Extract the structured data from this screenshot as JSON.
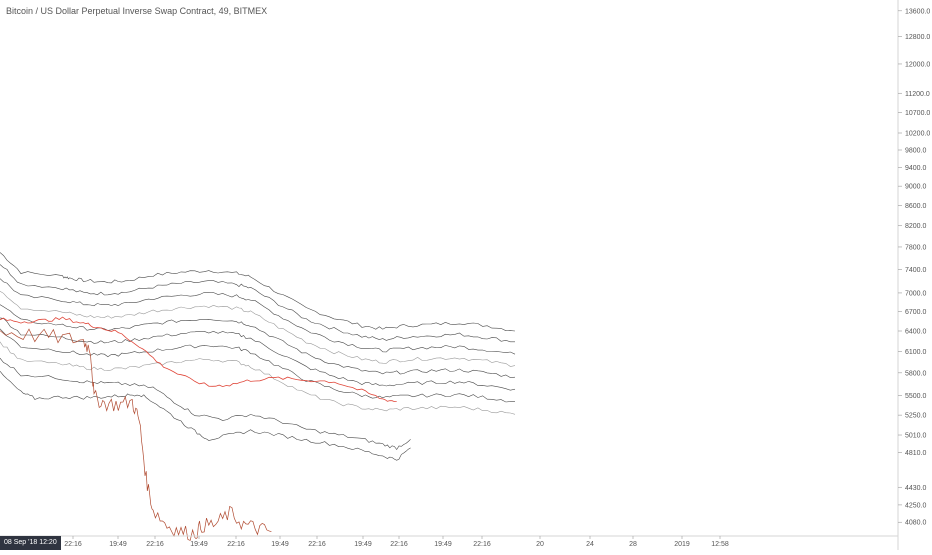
{
  "chart_title": "Bitcoin / US Dollar Perpetual Inverse Swap Contract, 49, BITMEX",
  "time_badge": "08 Sep '18   12:20",
  "colors": {
    "background": "#ffffff",
    "band_lines": "#4a4a4a",
    "band_light": "#9a9a9a",
    "moving_average": "#e0473a",
    "price_main": "#b04a30",
    "axis_text": "#555555"
  },
  "chart_data": {
    "type": "line",
    "title": "Bitcoin / US Dollar Perpetual Inverse Swap Contract, 49, BITMEX",
    "yscale": "log",
    "ylim": [
      3950,
      13950
    ],
    "y_ticks": [
      "13600.0",
      "12800.0",
      "12000.0",
      "11200.0",
      "10700.0",
      "10200.0",
      "9800.0",
      "9400.0",
      "9000.0",
      "8600.0",
      "8200.0",
      "7800.0",
      "7400.0",
      "7000.0",
      "6700.0",
      "6400.0",
      "6100.0",
      "5800.0",
      "5500.0",
      "5250.0",
      "5010.0",
      "4810.0",
      "4430.0",
      "4250.0",
      "4080.0"
    ],
    "x_ticks": [
      "22:16",
      "19:49",
      "22:16",
      "19:49",
      "22:16",
      "19:49",
      "22:16",
      "19:49",
      "22:16",
      "19:49",
      "22:16",
      "20",
      "24",
      "28",
      "2019",
      "12:58"
    ],
    "xlim": [
      0,
      100
    ],
    "series": [
      {
        "values": [
          [
            0,
            7700
          ],
          [
            3,
            7350
          ],
          [
            9,
            7280
          ],
          [
            10,
            7250
          ],
          [
            12,
            7210
          ],
          [
            15,
            7180
          ],
          [
            18,
            7200
          ],
          [
            22,
            7300
          ],
          [
            26,
            7350
          ],
          [
            30,
            7380
          ],
          [
            34,
            7330
          ],
          [
            36,
            7270
          ],
          [
            40,
            7000
          ],
          [
            44,
            6750
          ],
          [
            48,
            6600
          ],
          [
            52,
            6480
          ],
          [
            55,
            6430
          ],
          [
            58,
            6480
          ],
          [
            62,
            6500
          ],
          [
            66,
            6530
          ],
          [
            70,
            6480
          ],
          [
            74,
            6400
          ]
        ]
      },
      {
        "values": [
          [
            0,
            7500
          ],
          [
            3,
            7150
          ],
          [
            9,
            7080
          ],
          [
            12,
            7000
          ],
          [
            15,
            6990
          ],
          [
            18,
            7010
          ],
          [
            22,
            7100
          ],
          [
            26,
            7160
          ],
          [
            30,
            7190
          ],
          [
            34,
            7140
          ],
          [
            36,
            7080
          ],
          [
            40,
            6820
          ],
          [
            44,
            6580
          ],
          [
            48,
            6430
          ],
          [
            52,
            6320
          ],
          [
            55,
            6270
          ],
          [
            58,
            6310
          ],
          [
            62,
            6330
          ],
          [
            66,
            6350
          ],
          [
            70,
            6300
          ],
          [
            74,
            6240
          ]
        ]
      },
      {
        "values": [
          [
            0,
            7250
          ],
          [
            3,
            6950
          ],
          [
            9,
            6880
          ],
          [
            12,
            6820
          ],
          [
            15,
            6800
          ],
          [
            18,
            6820
          ],
          [
            22,
            6910
          ],
          [
            26,
            6960
          ],
          [
            30,
            6990
          ],
          [
            34,
            6950
          ],
          [
            36,
            6890
          ],
          [
            40,
            6640
          ],
          [
            44,
            6410
          ],
          [
            48,
            6260
          ],
          [
            52,
            6160
          ],
          [
            55,
            6110
          ],
          [
            58,
            6140
          ],
          [
            62,
            6160
          ],
          [
            66,
            6170
          ],
          [
            70,
            6120
          ],
          [
            74,
            6060
          ]
        ]
      },
      {
        "values": [
          [
            0,
            7050
          ],
          [
            3,
            6760
          ],
          [
            9,
            6690
          ],
          [
            12,
            6630
          ],
          [
            15,
            6610
          ],
          [
            18,
            6630
          ],
          [
            22,
            6710
          ],
          [
            26,
            6760
          ],
          [
            30,
            6790
          ],
          [
            34,
            6750
          ],
          [
            36,
            6690
          ],
          [
            40,
            6460
          ],
          [
            44,
            6240
          ],
          [
            48,
            6090
          ],
          [
            52,
            5990
          ],
          [
            55,
            5950
          ],
          [
            58,
            5980
          ],
          [
            62,
            6000
          ],
          [
            66,
            6010
          ],
          [
            70,
            5960
          ],
          [
            74,
            5900
          ]
        ]
      },
      {
        "values": [
          [
            0,
            6830
          ],
          [
            3,
            6560
          ],
          [
            9,
            6490
          ],
          [
            12,
            6440
          ],
          [
            15,
            6420
          ],
          [
            18,
            6440
          ],
          [
            22,
            6510
          ],
          [
            26,
            6560
          ],
          [
            30,
            6590
          ],
          [
            34,
            6550
          ],
          [
            36,
            6490
          ],
          [
            40,
            6270
          ],
          [
            44,
            6060
          ],
          [
            48,
            5920
          ],
          [
            52,
            5830
          ],
          [
            55,
            5790
          ],
          [
            58,
            5810
          ],
          [
            62,
            5830
          ],
          [
            66,
            5840
          ],
          [
            70,
            5800
          ],
          [
            74,
            5740
          ]
        ]
      },
      {
        "values": [
          [
            0,
            6620
          ],
          [
            3,
            6360
          ],
          [
            9,
            6300
          ],
          [
            12,
            6250
          ],
          [
            15,
            6230
          ],
          [
            18,
            6250
          ],
          [
            22,
            6310
          ],
          [
            26,
            6360
          ],
          [
            30,
            6390
          ],
          [
            34,
            6350
          ],
          [
            36,
            6290
          ],
          [
            40,
            6080
          ],
          [
            44,
            5880
          ],
          [
            48,
            5750
          ],
          [
            52,
            5660
          ],
          [
            55,
            5630
          ],
          [
            58,
            5650
          ],
          [
            62,
            5670
          ],
          [
            66,
            5680
          ],
          [
            70,
            5630
          ],
          [
            74,
            5580
          ]
        ]
      },
      {
        "values": [
          [
            0,
            6420
          ],
          [
            3,
            6170
          ],
          [
            9,
            6110
          ],
          [
            12,
            6060
          ],
          [
            15,
            6040
          ],
          [
            18,
            6060
          ],
          [
            22,
            6110
          ],
          [
            26,
            6160
          ],
          [
            30,
            6190
          ],
          [
            34,
            6150
          ],
          [
            36,
            6090
          ],
          [
            40,
            5890
          ],
          [
            44,
            5700
          ],
          [
            48,
            5580
          ],
          [
            52,
            5500
          ],
          [
            55,
            5470
          ],
          [
            58,
            5490
          ],
          [
            62,
            5500
          ],
          [
            66,
            5510
          ],
          [
            70,
            5470
          ],
          [
            74,
            5420
          ]
        ]
      },
      {
        "values": [
          [
            0,
            6230
          ],
          [
            3,
            5970
          ],
          [
            9,
            5920
          ],
          [
            12,
            5870
          ],
          [
            15,
            5850
          ],
          [
            18,
            5860
          ],
          [
            22,
            5910
          ],
          [
            26,
            5960
          ],
          [
            30,
            5990
          ],
          [
            34,
            5950
          ],
          [
            36,
            5890
          ],
          [
            40,
            5700
          ],
          [
            44,
            5520
          ],
          [
            48,
            5410
          ],
          [
            52,
            5340
          ],
          [
            55,
            5310
          ],
          [
            58,
            5330
          ],
          [
            62,
            5340
          ],
          [
            66,
            5350
          ],
          [
            70,
            5310
          ],
          [
            74,
            5260
          ]
        ]
      },
      {
        "values": [
          [
            0,
            6000
          ],
          [
            3,
            5780
          ],
          [
            9,
            5720
          ],
          [
            12,
            5680
          ],
          [
            15,
            5660
          ],
          [
            18,
            5650
          ],
          [
            22,
            5600
          ],
          [
            25,
            5420
          ],
          [
            28,
            5260
          ],
          [
            32,
            5200
          ],
          [
            36,
            5260
          ],
          [
            40,
            5180
          ],
          [
            44,
            5080
          ],
          [
            48,
            5020
          ],
          [
            52,
            4960
          ],
          [
            55,
            4900
          ],
          [
            57,
            4860
          ],
          [
            59,
            4960
          ]
        ]
      },
      {
        "values": [
          [
            0,
            5800
          ],
          [
            3,
            5540
          ],
          [
            5,
            5460
          ],
          [
            9,
            5480
          ],
          [
            12,
            5470
          ],
          [
            15,
            5480
          ],
          [
            18,
            5500
          ],
          [
            20,
            5520
          ],
          [
            22,
            5420
          ],
          [
            25,
            5230
          ],
          [
            28,
            5050
          ],
          [
            30,
            4960
          ],
          [
            33,
            5010
          ],
          [
            36,
            5060
          ],
          [
            40,
            5010
          ],
          [
            44,
            4950
          ],
          [
            48,
            4900
          ],
          [
            52,
            4830
          ],
          [
            55,
            4770
          ],
          [
            57,
            4730
          ],
          [
            59,
            4860
          ]
        ]
      },
      {
        "values": [
          [
            0,
            6580
          ],
          [
            3,
            6540
          ],
          [
            6,
            6560
          ],
          [
            9,
            6590
          ],
          [
            12,
            6520
          ],
          [
            14,
            6460
          ],
          [
            17,
            6380
          ],
          [
            20,
            6180
          ],
          [
            23,
            5920
          ],
          [
            26,
            5760
          ],
          [
            30,
            5620
          ],
          [
            33,
            5640
          ],
          [
            36,
            5700
          ],
          [
            40,
            5730
          ],
          [
            44,
            5700
          ],
          [
            48,
            5680
          ],
          [
            52,
            5560
          ],
          [
            55,
            5450
          ],
          [
            57,
            5420
          ]
        ]
      },
      {
        "values": [
          [
            0,
            6400
          ],
          [
            5,
            6330
          ],
          [
            9,
            6300
          ],
          [
            12,
            6250
          ],
          [
            13,
            6120
          ],
          [
            13.5,
            5480
          ],
          [
            15,
            5400
          ],
          [
            17,
            5380
          ],
          [
            19,
            5420
          ],
          [
            20,
            5180
          ],
          [
            21,
            4520
          ],
          [
            22,
            4200
          ],
          [
            24,
            4050
          ],
          [
            26,
            3990
          ],
          [
            28,
            3970
          ],
          [
            29,
            4050
          ],
          [
            31,
            4060
          ],
          [
            33,
            4170
          ],
          [
            35,
            4060
          ],
          [
            37,
            4020
          ],
          [
            39,
            3990
          ]
        ]
      }
    ]
  }
}
